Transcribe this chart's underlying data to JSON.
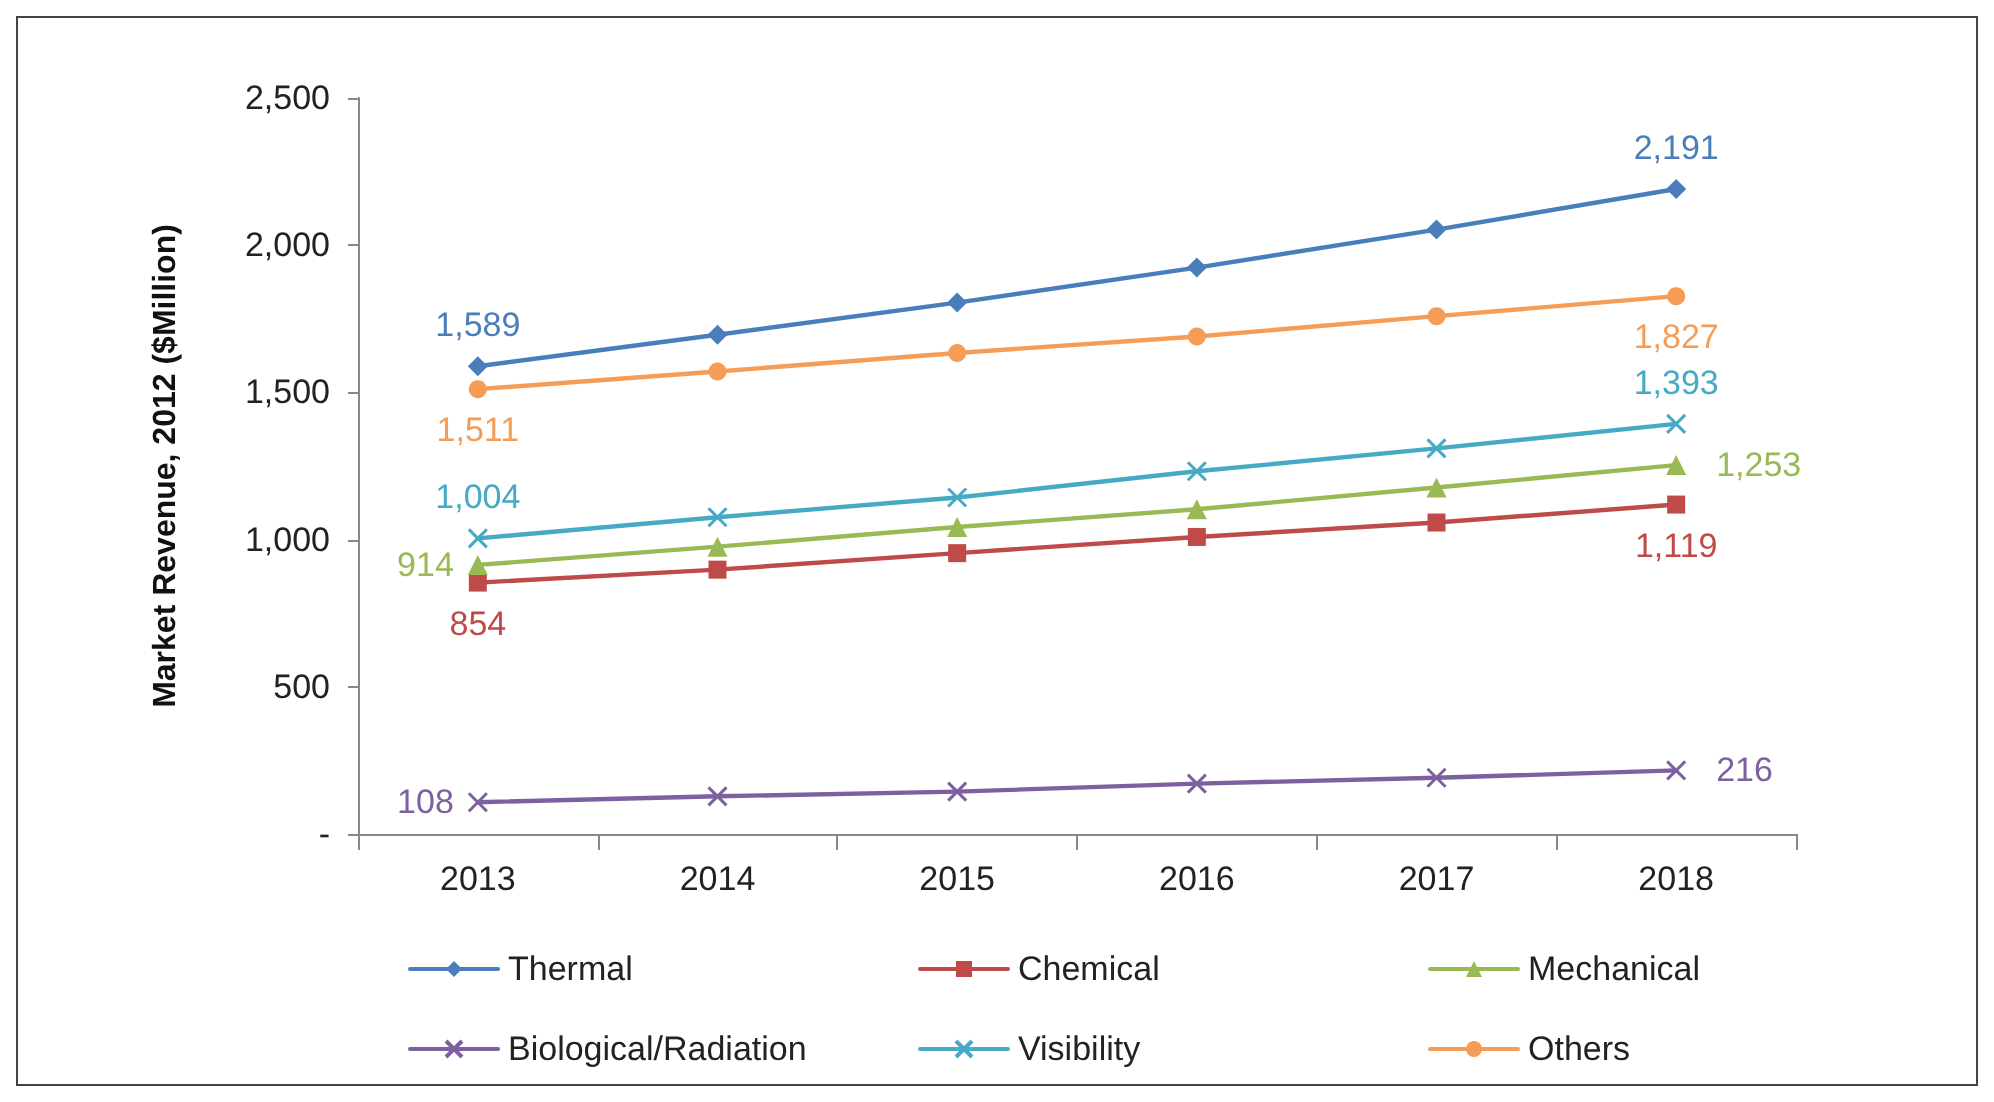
{
  "chart_data": {
    "type": "line",
    "ylabel": "Market Revenue, 2012 ($Million)",
    "categories": [
      "2013",
      "2014",
      "2015",
      "2016",
      "2017",
      "2018"
    ],
    "ylim": [
      0,
      2500
    ],
    "yticks": [
      {
        "value": 0,
        "label": "-"
      },
      500,
      {
        "value": 1000,
        "label": "1,000"
      },
      {
        "value": 1500,
        "label": "1,500"
      },
      {
        "value": 2000,
        "label": "2,000"
      },
      {
        "value": 2500,
        "label": "2,500"
      }
    ],
    "grid": false,
    "legend": "bottom",
    "line_style": "solid",
    "series": [
      {
        "name": "Thermal",
        "color": "#4a7ebb",
        "marker": "diamond",
        "values": [
          1589,
          1696,
          1805,
          1924,
          2053,
          2191
        ],
        "value_labels": [
          "1,589",
          null,
          null,
          null,
          null,
          "2,191"
        ]
      },
      {
        "name": "Chemical",
        "color": "#be4b48",
        "marker": "square",
        "values": [
          854,
          898,
          954,
          1009,
          1058,
          1119
        ],
        "value_labels": [
          "854",
          null,
          null,
          null,
          null,
          "1,119"
        ]
      },
      {
        "name": "Mechanical",
        "color": "#98b954",
        "marker": "triangle",
        "values": [
          914,
          976,
          1043,
          1103,
          1177,
          1253
        ],
        "value_labels": [
          "914",
          null,
          null,
          null,
          null,
          "1,253"
        ]
      },
      {
        "name": "Biological/Radiation",
        "color": "#7d60a0",
        "marker": "cross",
        "values": [
          108,
          128,
          144,
          171,
          191,
          216
        ],
        "value_labels": [
          "108",
          null,
          null,
          null,
          null,
          "216"
        ]
      },
      {
        "name": "Visibility",
        "color": "#46aac5",
        "marker": "cross",
        "values": [
          1004,
          1076,
          1143,
          1232,
          1310,
          1393
        ],
        "value_labels": [
          "1,004",
          null,
          null,
          null,
          null,
          "1,393"
        ]
      },
      {
        "name": "Others",
        "color": "#f59d56",
        "marker": "circle",
        "values": [
          1511,
          1571,
          1634,
          1690,
          1759,
          1827
        ],
        "value_labels": [
          "1,511",
          null,
          null,
          null,
          null,
          "1,827"
        ]
      }
    ]
  }
}
